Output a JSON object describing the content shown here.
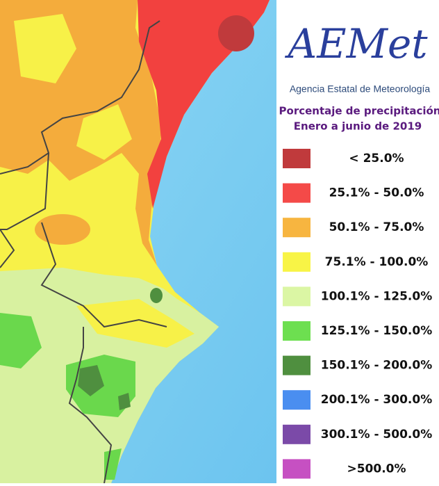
{
  "logo": "AEMet",
  "agency": "Agencia Estatal de Meteorología",
  "title": "Porcentaje de precipitación",
  "subtitle": "Enero a junio de 2019",
  "legend": {
    "items": [
      {
        "label": "< 25.0%",
        "color": "#c03a3c"
      },
      {
        "label": "25.1% - 50.0%",
        "color": "#f44a48"
      },
      {
        "label": "50.1% - 75.0%",
        "color": "#f7b540"
      },
      {
        "label": "75.1% - 100.0%",
        "color": "#f8f446"
      },
      {
        "label": "100.1% - 125.0%",
        "color": "#dbf6a4"
      },
      {
        "label": "125.1% - 150.0%",
        "color": "#6ddf50"
      },
      {
        "label": "150.1% - 200.0%",
        "color": "#4f8f3f"
      },
      {
        "label": "200.1% - 300.0%",
        "color": "#4a8ef0"
      },
      {
        "label": "300.1% - 500.0%",
        "color": "#7b4aa8"
      },
      {
        "label": ">500.0%",
        "color": "#c650c2"
      }
    ]
  }
}
